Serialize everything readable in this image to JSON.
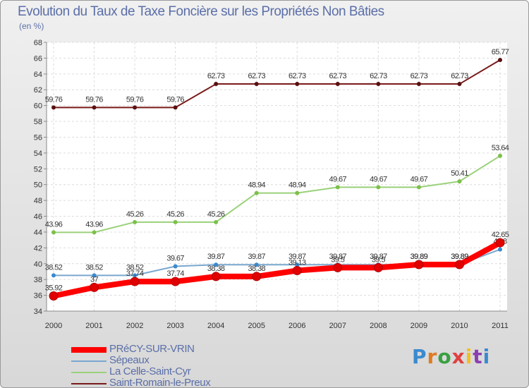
{
  "title": "Evolution du Taux de Taxe Foncière sur les Propriétés Non Bâties",
  "unit_label": "(en %)",
  "logo_text": "Proxiti",
  "chart_data": {
    "type": "line",
    "title": "Evolution du Taux de Taxe Foncière sur les Propriétés Non Bâties",
    "ylabel": "(en %)",
    "xlabel": "",
    "ylim": [
      34,
      68
    ],
    "yticks": [
      34,
      36,
      38,
      40,
      42,
      44,
      46,
      48,
      50,
      52,
      54,
      56,
      58,
      60,
      62,
      64,
      66,
      68
    ],
    "categories": [
      "2000",
      "2001",
      "2002",
      "2003",
      "2004",
      "2005",
      "2006",
      "2007",
      "2008",
      "2009",
      "2010",
      "2011"
    ],
    "grid": true,
    "series": [
      {
        "name": "Saint-Romain-le-Preux",
        "color": "#7a1a1a",
        "marker": "#5a1010",
        "values": [
          59.76,
          59.76,
          59.76,
          59.76,
          62.73,
          62.73,
          62.73,
          62.73,
          62.73,
          62.73,
          62.73,
          65.77
        ],
        "labels": [
          "59.76",
          "59.76",
          "59.76",
          "59.76",
          "62.73",
          "62.73",
          "62.73",
          "62.73",
          "62.73",
          "62.73",
          "62.73",
          "65.77"
        ]
      },
      {
        "name": "La Celle-Saint-Cyr",
        "color": "#9ad17a",
        "marker": "#7cc04a",
        "values": [
          43.96,
          43.96,
          45.26,
          45.26,
          45.26,
          48.94,
          48.94,
          49.67,
          49.67,
          49.67,
          50.41,
          53.64
        ],
        "labels": [
          "43.96",
          "43.96",
          "45.26",
          "45.26",
          "45.26",
          "48.94",
          "48.94",
          "49.67",
          "49.67",
          "49.67",
          "50.41",
          "53.64"
        ]
      },
      {
        "name": "Sépeaux",
        "color": "#7aa7cf",
        "marker": "#3a8ad0",
        "values": [
          38.52,
          38.52,
          38.52,
          39.67,
          39.87,
          39.87,
          39.87,
          39.87,
          39.87,
          39.89,
          39.89,
          41.8
        ],
        "labels": [
          "38.52",
          "38.52",
          "38.52",
          "39.67",
          "39.87",
          "39.87",
          "39.87",
          "39.87",
          "39.87",
          "39.89",
          "39.89",
          "41.8"
        ]
      },
      {
        "name": "PRéCY-SUR-VRIN",
        "color": "#ff0000",
        "marker": "#e00000",
        "values": [
          35.92,
          37,
          37.74,
          37.74,
          38.38,
          38.38,
          39.13,
          39.5,
          39.5,
          39.89,
          39.89,
          42.65
        ],
        "labels": [
          "35.92",
          "37",
          "37.74",
          "37.74",
          "38.38",
          "38.38",
          "39.13",
          "39.5",
          "39.5",
          "39.89",
          "39.89",
          "42.65"
        ]
      }
    ],
    "legend": [
      {
        "name": "PRéCY-SUR-VRIN",
        "color": "#ff0000"
      },
      {
        "name": "Sépeaux",
        "color": "#7aa7cf"
      },
      {
        "name": "La Celle-Saint-Cyr",
        "color": "#9ad17a"
      },
      {
        "name": "Saint-Romain-le-Preux",
        "color": "#7a1a1a"
      }
    ],
    "legend_position": "bottom-left"
  }
}
